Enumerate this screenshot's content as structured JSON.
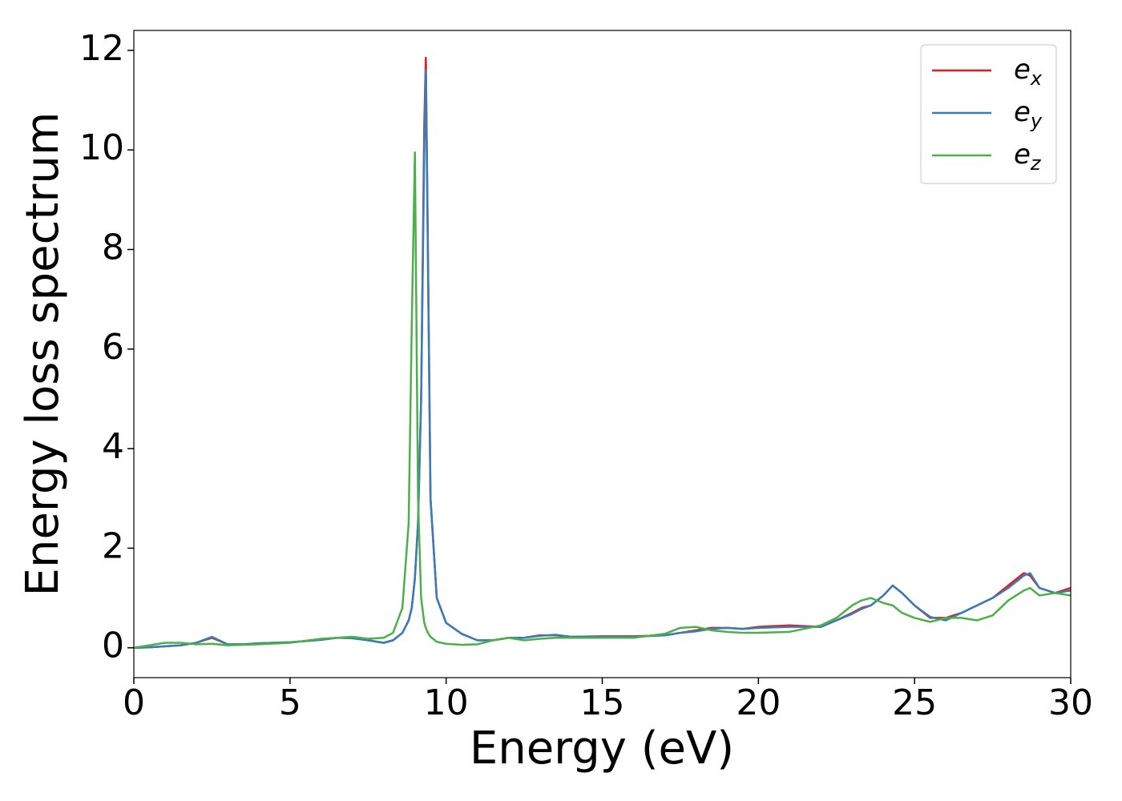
{
  "chart_data": {
    "type": "line",
    "xlabel": "Energy (eV)",
    "ylabel": "Energy loss spectrum",
    "x": [
      0,
      0.5,
      1,
      1.5,
      2,
      2.5,
      3,
      3.5,
      4,
      5,
      6,
      6.5,
      7,
      7.5,
      8,
      8.3,
      8.6,
      8.8,
      8.9,
      9.0,
      9.1,
      9.2,
      9.3,
      9.35,
      9.4,
      9.5,
      9.7,
      10,
      10.5,
      11,
      11.5,
      12,
      12.5,
      13,
      13.5,
      14,
      15,
      16,
      17,
      17.5,
      18,
      18.5,
      19,
      19.5,
      20,
      21,
      22,
      22.5,
      23,
      23.3,
      23.6,
      24,
      24.3,
      24.6,
      25,
      25.5,
      26,
      26.5,
      27,
      27.5,
      28,
      28.5,
      28.7,
      29,
      29.5,
      30
    ],
    "series": [
      {
        "name": "ex",
        "color": "#e41a1c",
        "values": [
          0,
          0.01,
          0.03,
          0.05,
          0.1,
          0.2,
          0.07,
          0.07,
          0.09,
          0.11,
          0.16,
          0.2,
          0.2,
          0.15,
          0.1,
          0.15,
          0.3,
          0.55,
          0.8,
          1.4,
          2.5,
          5.0,
          10.5,
          11.85,
          9.0,
          3.0,
          1.0,
          0.5,
          0.28,
          0.15,
          0.15,
          0.2,
          0.2,
          0.25,
          0.25,
          0.22,
          0.23,
          0.23,
          0.25,
          0.3,
          0.35,
          0.4,
          0.4,
          0.38,
          0.42,
          0.45,
          0.42,
          0.55,
          0.7,
          0.8,
          0.85,
          1.05,
          1.25,
          1.1,
          0.85,
          0.6,
          0.6,
          0.7,
          0.85,
          1.0,
          1.25,
          1.5,
          1.45,
          1.2,
          1.1,
          1.2
        ]
      },
      {
        "name": "ey",
        "color": "#377eb8",
        "values": [
          0,
          0.01,
          0.03,
          0.05,
          0.1,
          0.22,
          0.07,
          0.07,
          0.09,
          0.11,
          0.16,
          0.2,
          0.19,
          0.15,
          0.1,
          0.15,
          0.3,
          0.55,
          0.8,
          1.4,
          2.5,
          5.0,
          10.0,
          11.6,
          8.8,
          3.0,
          1.0,
          0.5,
          0.28,
          0.15,
          0.15,
          0.2,
          0.2,
          0.24,
          0.26,
          0.22,
          0.22,
          0.22,
          0.25,
          0.3,
          0.33,
          0.38,
          0.4,
          0.38,
          0.4,
          0.42,
          0.42,
          0.55,
          0.68,
          0.78,
          0.85,
          1.05,
          1.25,
          1.1,
          0.85,
          0.62,
          0.55,
          0.7,
          0.85,
          1.0,
          1.2,
          1.45,
          1.5,
          1.2,
          1.1,
          1.15
        ]
      },
      {
        "name": "ez",
        "color": "#4daf4a",
        "values": [
          0,
          0.05,
          0.1,
          0.1,
          0.07,
          0.08,
          0.05,
          0.06,
          0.07,
          0.1,
          0.18,
          0.2,
          0.22,
          0.18,
          0.2,
          0.3,
          0.8,
          2.5,
          6.5,
          9.95,
          3.0,
          1.0,
          0.5,
          0.4,
          0.32,
          0.22,
          0.12,
          0.08,
          0.06,
          0.07,
          0.15,
          0.2,
          0.15,
          0.18,
          0.2,
          0.2,
          0.2,
          0.2,
          0.28,
          0.4,
          0.42,
          0.35,
          0.32,
          0.3,
          0.3,
          0.32,
          0.45,
          0.6,
          0.85,
          0.95,
          1.0,
          0.9,
          0.85,
          0.7,
          0.6,
          0.52,
          0.6,
          0.6,
          0.55,
          0.65,
          0.95,
          1.15,
          1.2,
          1.05,
          1.1,
          1.05
        ]
      }
    ],
    "xlim": [
      0,
      30
    ],
    "xticks": [
      0,
      5,
      10,
      15,
      20,
      25,
      30
    ],
    "ylim": [
      -0.6,
      12.4
    ],
    "yticks": [
      0,
      2,
      4,
      6,
      8,
      10,
      12
    ],
    "grid": false,
    "legend": "upper right"
  }
}
